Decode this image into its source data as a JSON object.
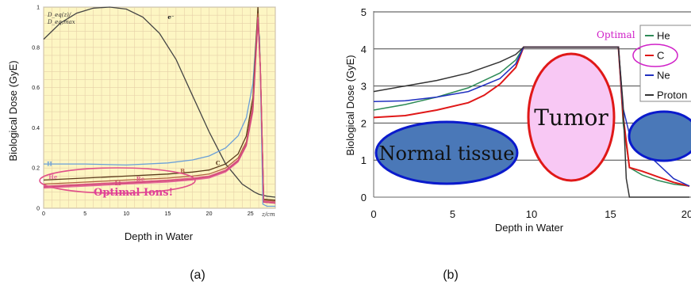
{
  "panel_labels": {
    "a": "(a)",
    "b": "(b)"
  },
  "chart_data": [
    {
      "type": "line",
      "panel": "a",
      "xlabel": "Depth in Water",
      "ylabel": "Biological Dose (GyE)",
      "x_unit_label": "z/cm",
      "y_title_line1": "D_eq(z)/",
      "y_title_line2": "D_eq,max",
      "xlim": [
        0,
        28
      ],
      "ylim": [
        0,
        1
      ],
      "x_ticks": [
        "0",
        "5",
        "10",
        "15",
        "20",
        "25"
      ],
      "x_tick_values": [
        0,
        5,
        10,
        15,
        20,
        25
      ],
      "y_ticks": [
        "0",
        "0.2",
        "0.4",
        "0.6",
        "0.8",
        "1"
      ],
      "y_tick_values": [
        0,
        0.2,
        0.4,
        0.6,
        0.8,
        1
      ],
      "background": "#fdf6c3",
      "grid": true,
      "annotation": "Optimal Ions!",
      "series": [
        {
          "name": "e⁻",
          "color": "#444444",
          "label_at": [
            15,
            0.94
          ],
          "x": [
            0,
            2,
            4,
            6,
            8,
            10,
            12,
            14,
            16,
            18,
            20,
            22,
            24,
            25.5,
            26,
            27,
            28
          ],
          "y": [
            0.84,
            0.92,
            0.97,
            0.995,
            1.0,
            0.99,
            0.95,
            0.87,
            0.74,
            0.56,
            0.38,
            0.22,
            0.12,
            0.08,
            0.07,
            0.06,
            0.055
          ]
        },
        {
          "name": "H",
          "color": "#6a9fd8",
          "label_at": [
            0.4,
            0.21
          ],
          "x": [
            0,
            5,
            10,
            15,
            18,
            20,
            22,
            23.5,
            24.5,
            25.3,
            25.8,
            26.1,
            26.5,
            27,
            28
          ],
          "y": [
            0.22,
            0.22,
            0.215,
            0.225,
            0.24,
            0.26,
            0.3,
            0.36,
            0.45,
            0.62,
            0.92,
            0.85,
            0.02,
            0.01,
            0.01
          ]
        },
        {
          "name": "C",
          "color": "#5a3a1a",
          "label_at": [
            20.8,
            0.215
          ],
          "x": [
            0,
            5,
            10,
            15,
            18,
            20,
            22,
            23.5,
            24.5,
            25.3,
            25.9,
            26.2,
            26.6,
            28
          ],
          "y": [
            0.14,
            0.15,
            0.16,
            0.17,
            0.18,
            0.19,
            0.22,
            0.27,
            0.36,
            0.55,
            1.0,
            0.7,
            0.045,
            0.04
          ]
        },
        {
          "name": "B",
          "color": "#b06040",
          "label_at": [
            16.5,
            0.175
          ],
          "x": [
            0,
            5,
            10,
            15,
            18,
            20,
            22,
            23.5,
            24.5,
            25.3,
            25.9,
            26.2,
            26.6,
            28
          ],
          "y": [
            0.12,
            0.13,
            0.14,
            0.15,
            0.16,
            0.17,
            0.2,
            0.25,
            0.33,
            0.52,
            0.97,
            0.7,
            0.04,
            0.035
          ]
        },
        {
          "name": "Be",
          "color": "#e05a8a",
          "label_at": [
            11.2,
            0.135
          ],
          "x": [
            0,
            5,
            10,
            15,
            18,
            20,
            22,
            23.5,
            24.5,
            25.3,
            25.9,
            26.2,
            26.6,
            28
          ],
          "y": [
            0.11,
            0.12,
            0.13,
            0.14,
            0.15,
            0.16,
            0.19,
            0.24,
            0.32,
            0.5,
            0.95,
            0.7,
            0.035,
            0.03
          ]
        },
        {
          "name": "He",
          "color": "#e86aa0",
          "label_at": [
            0.6,
            0.145
          ],
          "x": [
            0,
            5,
            10,
            15,
            18,
            20,
            22,
            23.5,
            24.5,
            25.3,
            25.9,
            26.2,
            26.6,
            28
          ],
          "y": [
            0.1,
            0.11,
            0.12,
            0.13,
            0.14,
            0.15,
            0.18,
            0.23,
            0.31,
            0.48,
            0.93,
            0.7,
            0.03,
            0.025
          ]
        },
        {
          "name": "Li",
          "color": "#d04878",
          "label_at": [
            8.6,
            0.115
          ],
          "x": [
            0,
            5,
            10,
            15,
            18,
            20,
            22,
            23.5,
            24.5,
            25.3,
            25.9,
            26.2,
            26.6,
            28
          ],
          "y": [
            0.105,
            0.115,
            0.125,
            0.135,
            0.145,
            0.155,
            0.185,
            0.235,
            0.315,
            0.49,
            0.94,
            0.7,
            0.03,
            0.025
          ]
        }
      ]
    },
    {
      "type": "line",
      "panel": "b",
      "xlabel": "Depth in Water",
      "ylabel": "Biological Dose (GyE)",
      "xlim": [
        0,
        20
      ],
      "ylim": [
        0,
        5
      ],
      "x_ticks": [
        "0",
        "5",
        "10",
        "15",
        "20"
      ],
      "x_tick_values": [
        0,
        5,
        10,
        15,
        20
      ],
      "y_ticks": [
        "0",
        "1",
        "2",
        "3",
        "4",
        "5"
      ],
      "y_tick_values": [
        0,
        1,
        2,
        3,
        4,
        5
      ],
      "grid": true,
      "annotations": {
        "optimal": "Optimal",
        "tumor": "Tumor",
        "normal_tissue": "Normal tissue"
      },
      "legend_position": "top-right",
      "series": [
        {
          "name": "He",
          "color": "#2e8b57",
          "x": [
            0,
            2,
            4,
            6,
            8,
            9,
            9.5,
            12,
            15.5,
            15.8,
            16.2,
            17,
            18,
            19,
            20
          ],
          "y": [
            2.35,
            2.5,
            2.7,
            2.95,
            3.35,
            3.7,
            4.05,
            4.05,
            4.05,
            2.0,
            0.8,
            0.6,
            0.45,
            0.35,
            0.3
          ]
        },
        {
          "name": "C",
          "color": "#e01818",
          "x": [
            0,
            2,
            4,
            6,
            7,
            8,
            9,
            9.5,
            12,
            15.5,
            15.8,
            16.2,
            17,
            18,
            19,
            20
          ],
          "y": [
            2.15,
            2.2,
            2.35,
            2.55,
            2.75,
            3.05,
            3.5,
            4.05,
            4.05,
            4.05,
            2.2,
            0.8,
            0.7,
            0.55,
            0.4,
            0.3
          ]
        },
        {
          "name": "Ne",
          "color": "#2030c0",
          "x": [
            0,
            2,
            4,
            6,
            8,
            9,
            9.5,
            12,
            15.5,
            15.8,
            16.2,
            17,
            18,
            19,
            20
          ],
          "y": [
            2.58,
            2.6,
            2.7,
            2.85,
            3.2,
            3.6,
            4.05,
            4.05,
            4.05,
            2.4,
            1.7,
            1.3,
            0.9,
            0.5,
            0.3
          ]
        },
        {
          "name": "Proton",
          "color": "#333333",
          "x": [
            0,
            2,
            4,
            6,
            8,
            9,
            9.5,
            12,
            15.5,
            15.8,
            16.0,
            16.2,
            20
          ],
          "y": [
            2.85,
            3.0,
            3.15,
            3.35,
            3.65,
            3.85,
            4.05,
            4.05,
            4.05,
            2.5,
            0.5,
            0.0,
            0.0
          ]
        }
      ]
    }
  ]
}
